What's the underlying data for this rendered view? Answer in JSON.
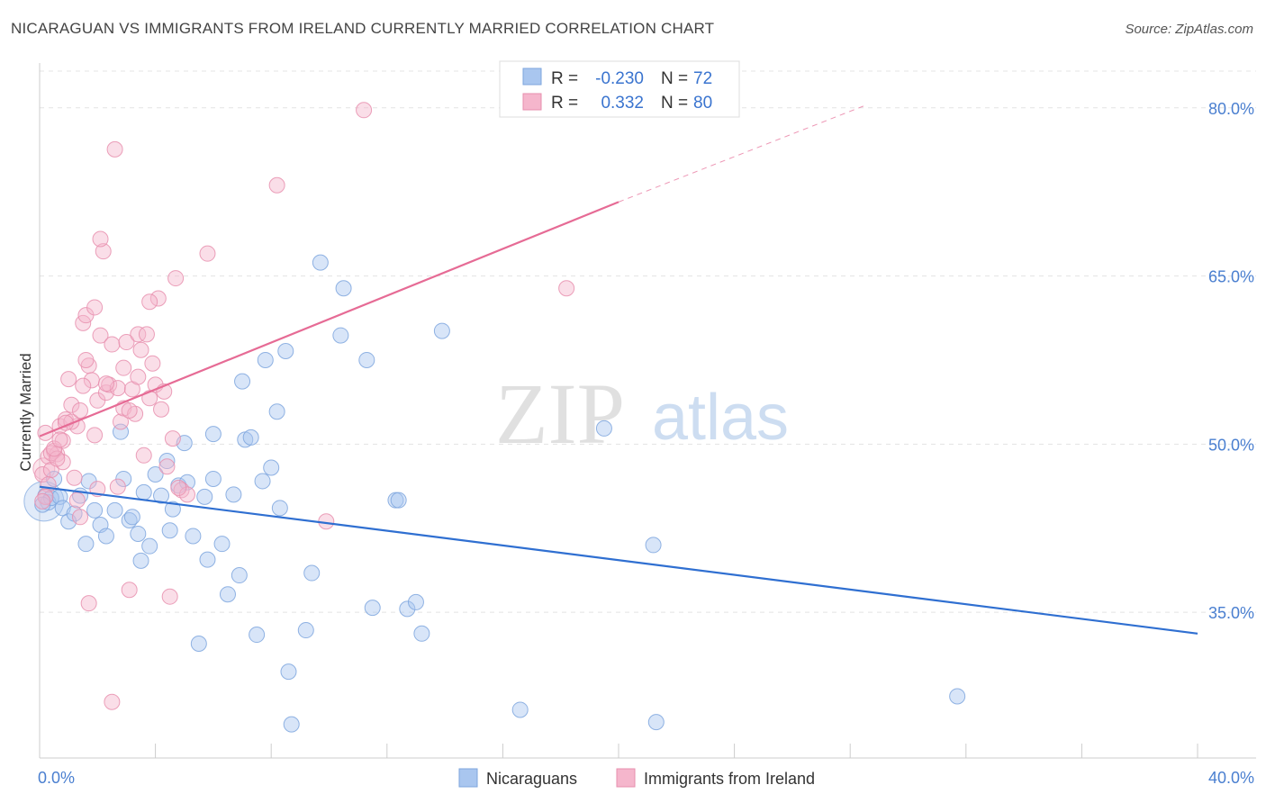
{
  "header": {
    "title": "NICARAGUAN VS IMMIGRANTS FROM IRELAND CURRENTLY MARRIED CORRELATION CHART",
    "source": "Source: ZipAtlas.com"
  },
  "watermark": {
    "zip": "ZIP",
    "atlas": "atlas"
  },
  "chart_data": {
    "type": "scatter",
    "ylabel": "Currently Married",
    "x_tick_labels": [
      "0.0%",
      "40.0%"
    ],
    "y_tick_labels": [
      "80.0%",
      "65.0%",
      "50.0%",
      "35.0%"
    ],
    "y_ticks": [
      80,
      65,
      50,
      35
    ],
    "xlim": [
      0,
      40
    ],
    "ylim": [
      22,
      84
    ],
    "grid": true,
    "stats_legend": {
      "placement": "top-center",
      "rows": [
        {
          "r_label": "R =",
          "r_value": "-0.230",
          "n_label": "N =",
          "n_value": "72"
        },
        {
          "r_label": "R =",
          "r_value": "0.332",
          "n_label": "N =",
          "n_value": "80"
        }
      ]
    },
    "series": [
      {
        "name": "Nicaraguans",
        "color": "#a9c6ef",
        "line_color": "#2f6fd1",
        "trend": {
          "x": [
            0,
            40
          ],
          "y": [
            46.2,
            33.1
          ]
        },
        "points": [
          [
            0.2,
            45.4
          ],
          [
            0.3,
            44.8
          ],
          [
            0.4,
            45.2
          ],
          [
            0.5,
            46.9
          ],
          [
            0.7,
            45.3
          ],
          [
            0.8,
            44.3
          ],
          [
            1.0,
            43.1
          ],
          [
            1.2,
            43.8
          ],
          [
            1.4,
            45.4
          ],
          [
            1.6,
            41.1
          ],
          [
            1.7,
            46.7
          ],
          [
            1.9,
            44.1
          ],
          [
            2.1,
            42.8
          ],
          [
            2.3,
            41.8
          ],
          [
            2.6,
            44.1
          ],
          [
            2.8,
            51.1
          ],
          [
            2.9,
            46.9
          ],
          [
            3.1,
            43.2
          ],
          [
            3.2,
            43.5
          ],
          [
            3.4,
            42.0
          ],
          [
            3.5,
            39.6
          ],
          [
            3.6,
            45.7
          ],
          [
            3.8,
            40.9
          ],
          [
            4.0,
            47.3
          ],
          [
            4.2,
            45.4
          ],
          [
            4.4,
            48.5
          ],
          [
            4.5,
            42.3
          ],
          [
            4.6,
            44.2
          ],
          [
            4.8,
            46.3
          ],
          [
            5.0,
            50.1
          ],
          [
            5.1,
            46.6
          ],
          [
            5.3,
            41.8
          ],
          [
            5.5,
            32.2
          ],
          [
            5.7,
            45.3
          ],
          [
            5.8,
            39.7
          ],
          [
            6.0,
            46.9
          ],
          [
            6.0,
            50.9
          ],
          [
            6.3,
            41.1
          ],
          [
            6.5,
            36.6
          ],
          [
            6.7,
            45.5
          ],
          [
            6.9,
            38.3
          ],
          [
            7.0,
            55.6
          ],
          [
            7.1,
            50.4
          ],
          [
            7.3,
            50.6
          ],
          [
            7.5,
            33.0
          ],
          [
            7.7,
            46.7
          ],
          [
            7.8,
            57.5
          ],
          [
            8.0,
            47.9
          ],
          [
            8.2,
            52.9
          ],
          [
            8.3,
            44.3
          ],
          [
            8.5,
            58.3
          ],
          [
            8.6,
            29.7
          ],
          [
            8.7,
            25.0
          ],
          [
            9.2,
            33.4
          ],
          [
            9.4,
            38.5
          ],
          [
            9.7,
            66.2
          ],
          [
            10.4,
            59.7
          ],
          [
            10.5,
            63.9
          ],
          [
            11.3,
            57.5
          ],
          [
            11.5,
            35.4
          ],
          [
            12.3,
            45.0
          ],
          [
            12.4,
            45.0
          ],
          [
            12.7,
            35.3
          ],
          [
            13.0,
            35.9
          ],
          [
            13.2,
            33.1
          ],
          [
            13.9,
            60.1
          ],
          [
            19.5,
            51.4
          ],
          [
            21.2,
            41.0
          ],
          [
            21.3,
            25.2
          ],
          [
            31.7,
            27.5
          ],
          [
            16.6,
            26.3
          ],
          [
            0.1,
            44.6
          ]
        ]
      },
      {
        "name": "Immigrants from Ireland",
        "color": "#f5b6cc",
        "line_color": "#e66b95",
        "trend": {
          "x": [
            0,
            20
          ],
          "y": [
            50.7,
            71.6
          ]
        },
        "trend_dashed": {
          "x": [
            20,
            28.5
          ],
          "y": [
            71.6,
            80.2
          ]
        },
        "points": [
          [
            0.1,
            47.3
          ],
          [
            0.2,
            51.0
          ],
          [
            0.3,
            48.9
          ],
          [
            0.4,
            47.7
          ],
          [
            0.5,
            49.4
          ],
          [
            0.6,
            49.1
          ],
          [
            0.7,
            51.6
          ],
          [
            0.8,
            48.4
          ],
          [
            0.9,
            52.2
          ],
          [
            1.0,
            55.8
          ],
          [
            1.1,
            53.5
          ],
          [
            1.2,
            47.0
          ],
          [
            1.3,
            51.6
          ],
          [
            1.4,
            43.5
          ],
          [
            1.5,
            60.8
          ],
          [
            1.6,
            61.5
          ],
          [
            1.7,
            57.0
          ],
          [
            1.8,
            55.7
          ],
          [
            1.9,
            62.2
          ],
          [
            2.0,
            53.9
          ],
          [
            2.1,
            59.7
          ],
          [
            2.2,
            67.2
          ],
          [
            2.3,
            54.6
          ],
          [
            2.4,
            55.3
          ],
          [
            2.5,
            58.9
          ],
          [
            2.6,
            76.3
          ],
          [
            2.7,
            55.0
          ],
          [
            2.8,
            52.0
          ],
          [
            2.9,
            53.2
          ],
          [
            3.0,
            59.1
          ],
          [
            3.1,
            37.0
          ],
          [
            3.2,
            54.9
          ],
          [
            3.3,
            52.7
          ],
          [
            3.4,
            59.8
          ],
          [
            3.5,
            58.4
          ],
          [
            3.6,
            49.0
          ],
          [
            3.7,
            59.8
          ],
          [
            3.8,
            54.1
          ],
          [
            3.9,
            57.2
          ],
          [
            4.0,
            55.3
          ],
          [
            4.1,
            63.0
          ],
          [
            4.2,
            53.1
          ],
          [
            4.3,
            54.7
          ],
          [
            4.5,
            36.4
          ],
          [
            4.6,
            50.5
          ],
          [
            4.7,
            64.8
          ],
          [
            4.9,
            45.9
          ],
          [
            5.1,
            45.5
          ],
          [
            5.8,
            67.0
          ],
          [
            8.2,
            73.1
          ],
          [
            11.2,
            79.8
          ],
          [
            18.2,
            63.9
          ],
          [
            9.9,
            43.1
          ],
          [
            2.1,
            68.3
          ],
          [
            1.7,
            35.8
          ],
          [
            2.5,
            27.0
          ],
          [
            0.8,
            50.3
          ],
          [
            1.6,
            57.5
          ],
          [
            2.3,
            55.4
          ],
          [
            0.4,
            49.2
          ],
          [
            0.6,
            48.7
          ],
          [
            1.1,
            52.0
          ],
          [
            1.4,
            53.0
          ],
          [
            2.7,
            46.2
          ],
          [
            3.1,
            53.0
          ],
          [
            0.3,
            46.4
          ],
          [
            0.9,
            51.9
          ],
          [
            0.5,
            49.6
          ],
          [
            1.3,
            45.0
          ],
          [
            2.0,
            46.0
          ],
          [
            4.8,
            46.1
          ],
          [
            3.4,
            56.0
          ],
          [
            0.2,
            45.3
          ],
          [
            0.7,
            50.4
          ],
          [
            1.9,
            50.8
          ],
          [
            4.4,
            48.0
          ],
          [
            3.8,
            62.7
          ],
          [
            1.5,
            55.2
          ],
          [
            2.9,
            56.8
          ],
          [
            0.1,
            44.9
          ]
        ]
      }
    ]
  }
}
